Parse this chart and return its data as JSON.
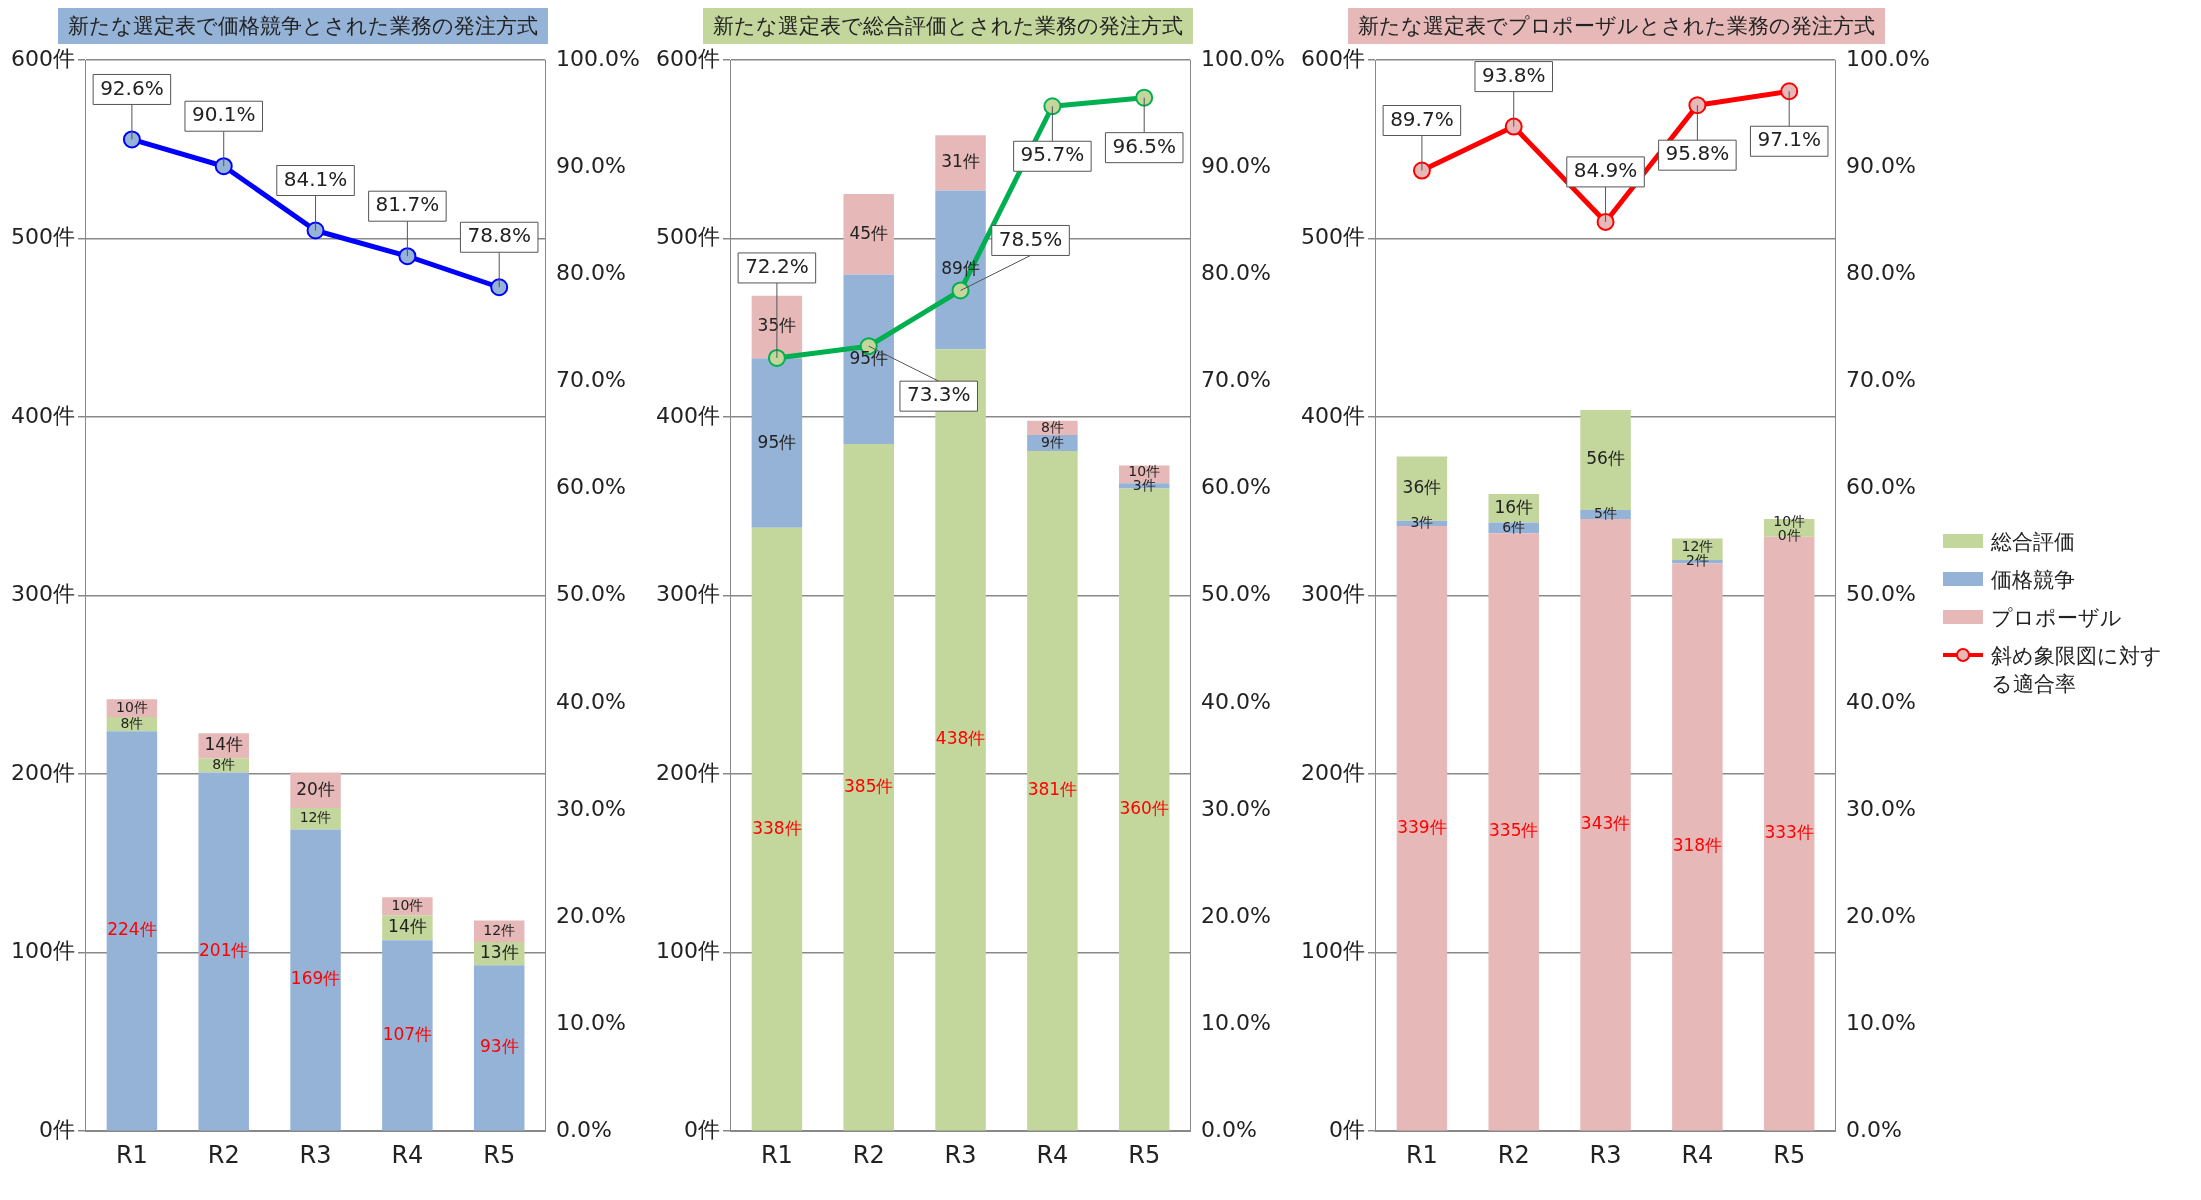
{
  "chart_data": [
    {
      "type": "bar",
      "title": "新たな選定表で価格競争とされた業務の発注方式",
      "categories": [
        "R1",
        "R2",
        "R3",
        "R4",
        "R5"
      ],
      "stacked": true,
      "grid": "y",
      "legend": false,
      "marker": "circle",
      "ylim": [
        0,
        600
      ],
      "yticks": [
        {
          "value": 0,
          "label": "0件"
        },
        {
          "value": 100,
          "label": "100件"
        },
        {
          "value": 200,
          "label": "200件"
        },
        {
          "value": 300,
          "label": "300件"
        },
        {
          "value": 400,
          "label": "400件"
        },
        {
          "value": 500,
          "label": "500件"
        },
        {
          "value": 600,
          "label": "600件"
        }
      ],
      "y2lim": [
        0,
        100
      ],
      "y2ticks": [
        {
          "value": 0,
          "label": "0.0%"
        },
        {
          "value": 10,
          "label": "10.0%"
        },
        {
          "value": 20,
          "label": "20.0%"
        },
        {
          "value": 30,
          "label": "30.0%"
        },
        {
          "value": 40,
          "label": "40.0%"
        },
        {
          "value": 50,
          "label": "50.0%"
        },
        {
          "value": 60,
          "label": "60.0%"
        },
        {
          "value": 70,
          "label": "70.0%"
        },
        {
          "value": 80,
          "label": "80.0%"
        },
        {
          "value": 90,
          "label": "90.0%"
        },
        {
          "value": 100,
          "label": "100.0%"
        }
      ],
      "series": [
        {
          "color": "#95b3d7",
          "values": [
            224,
            201,
            169,
            107,
            93
          ],
          "value_labels": [
            "224件",
            "201件",
            "169件",
            "107件",
            "93件"
          ]
        },
        {
          "color": "#c3d69b",
          "values": [
            8,
            8,
            12,
            14,
            13
          ],
          "value_labels": [
            "8件",
            "8件",
            "12件",
            "14件",
            "13件"
          ]
        },
        {
          "color": "#e6b9b8",
          "values": [
            10,
            14,
            20,
            10,
            12
          ],
          "value_labels": [
            "10件",
            "14件",
            "20件",
            "10件",
            "12件"
          ]
        },
        {
          "type": "line",
          "axis": "y2",
          "color": "#0000ff",
          "values": [
            92.6,
            90.1,
            84.1,
            81.7,
            78.8
          ],
          "value_labels": [
            "92.6%",
            "90.1%",
            "84.1%",
            "81.7%",
            "78.8%"
          ]
        }
      ]
    },
    {
      "type": "bar",
      "title": "新たな選定表で総合評価とされた業務の発注方式",
      "categories": [
        "R1",
        "R2",
        "R3",
        "R4",
        "R5"
      ],
      "stacked": true,
      "grid": "y",
      "legend": false,
      "marker": "circle",
      "ylim": [
        0,
        600
      ],
      "yticks": [
        {
          "value": 0,
          "label": "0件"
        },
        {
          "value": 100,
          "label": "100件"
        },
        {
          "value": 200,
          "label": "200件"
        },
        {
          "value": 300,
          "label": "300件"
        },
        {
          "value": 400,
          "label": "400件"
        },
        {
          "value": 500,
          "label": "500件"
        },
        {
          "value": 600,
          "label": "600件"
        }
      ],
      "y2lim": [
        0,
        100
      ],
      "y2ticks": [
        {
          "value": 0,
          "label": "0.0%"
        },
        {
          "value": 10,
          "label": "10.0%"
        },
        {
          "value": 20,
          "label": "20.0%"
        },
        {
          "value": 30,
          "label": "30.0%"
        },
        {
          "value": 40,
          "label": "40.0%"
        },
        {
          "value": 50,
          "label": "50.0%"
        },
        {
          "value": 60,
          "label": "60.0%"
        },
        {
          "value": 70,
          "label": "70.0%"
        },
        {
          "value": 80,
          "label": "80.0%"
        },
        {
          "value": 90,
          "label": "90.0%"
        },
        {
          "value": 100,
          "label": "100.0%"
        }
      ],
      "series": [
        {
          "color": "#c3d69b",
          "values": [
            338,
            385,
            438,
            381,
            360
          ],
          "value_labels": [
            "338件",
            "385件",
            "438件",
            "381件",
            "360件"
          ]
        },
        {
          "color": "#95b3d7",
          "values": [
            95,
            95,
            89,
            9,
            3
          ],
          "value_labels": [
            "95件",
            "95件",
            "89件",
            "9件",
            "3件"
          ]
        },
        {
          "color": "#e6b9b8",
          "values": [
            35,
            45,
            31,
            8,
            10
          ],
          "value_labels": [
            "35件",
            "45件",
            "31件",
            "8件",
            "10件"
          ]
        },
        {
          "type": "line",
          "axis": "y2",
          "color": "#00b050",
          "values": [
            72.2,
            73.3,
            78.5,
            95.7,
            96.5
          ],
          "value_labels": [
            "72.2%",
            "73.3%",
            "78.5%",
            "95.7%",
            "96.5%"
          ]
        }
      ]
    },
    {
      "type": "bar",
      "title": "新たな選定表でプロポーザルとされた業務の発注方式",
      "categories": [
        "R1",
        "R2",
        "R3",
        "R4",
        "R5"
      ],
      "stacked": true,
      "grid": "y",
      "legend": "right",
      "marker": "circle",
      "ylim": [
        0,
        600
      ],
      "yticks": [
        {
          "value": 0,
          "label": "0件"
        },
        {
          "value": 100,
          "label": "100件"
        },
        {
          "value": 200,
          "label": "200件"
        },
        {
          "value": 300,
          "label": "300件"
        },
        {
          "value": 400,
          "label": "400件"
        },
        {
          "value": 500,
          "label": "500件"
        },
        {
          "value": 600,
          "label": "600件"
        }
      ],
      "y2lim": [
        0,
        100
      ],
      "y2ticks": [
        {
          "value": 0,
          "label": "0.0%"
        },
        {
          "value": 10,
          "label": "10.0%"
        },
        {
          "value": 20,
          "label": "20.0%"
        },
        {
          "value": 30,
          "label": "30.0%"
        },
        {
          "value": 40,
          "label": "40.0%"
        },
        {
          "value": 50,
          "label": "50.0%"
        },
        {
          "value": 60,
          "label": "60.0%"
        },
        {
          "value": 70,
          "label": "70.0%"
        },
        {
          "value": 80,
          "label": "80.0%"
        },
        {
          "value": 90,
          "label": "90.0%"
        },
        {
          "value": 100,
          "label": "100.0%"
        }
      ],
      "series": [
        {
          "name": "プロポーザル",
          "color": "#e6b9b8",
          "values": [
            339,
            335,
            343,
            318,
            333
          ],
          "value_labels": [
            "339件",
            "335件",
            "343件",
            "318件",
            "333件"
          ]
        },
        {
          "name": "価格競争",
          "color": "#95b3d7",
          "values": [
            3,
            6,
            5,
            2,
            0
          ],
          "value_labels": [
            "3件",
            "6件",
            "5件",
            "2件",
            "0件"
          ]
        },
        {
          "name": "総合評価",
          "color": "#c3d69b",
          "values": [
            36,
            16,
            56,
            12,
            10
          ],
          "value_labels": [
            "36件",
            "16件",
            "56件",
            "12件",
            "10件"
          ]
        },
        {
          "name": "斜め象限図に対する適合率",
          "type": "line",
          "axis": "y2",
          "color": "#ff0000",
          "values": [
            89.7,
            93.8,
            84.9,
            95.8,
            97.1
          ],
          "value_labels": [
            "89.7%",
            "93.8%",
            "84.9%",
            "95.8%",
            "97.1%"
          ]
        }
      ]
    }
  ]
}
